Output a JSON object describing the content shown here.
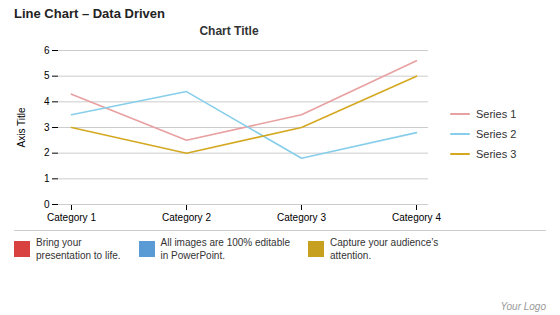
{
  "chart_data": {
    "type": "line",
    "title": "Chart Title",
    "ylabel": "Axis Title",
    "categories": [
      "Category 1",
      "Category 2",
      "Category 3",
      "Category 4"
    ],
    "series": [
      {
        "name": "Series 1",
        "color": "#E8A0A0",
        "values": [
          4.3,
          2.5,
          3.5,
          5.6
        ]
      },
      {
        "name": "Series 2",
        "color": "#87CEEB",
        "values": [
          3.5,
          4.4,
          1.8,
          2.8
        ]
      },
      {
        "name": "Series 3",
        "color": "#D4A820",
        "values": [
          3.0,
          2.0,
          3.0,
          5.0
        ]
      }
    ],
    "ylim": [
      0,
      6
    ],
    "yticks": [
      0,
      1,
      2,
      3,
      4,
      5,
      6
    ],
    "grid": true,
    "legend": "right",
    "annotations": [
      {
        "text": "Line Chart – Data Driven"
      },
      {
        "text": [
          "Bring your",
          "presentation to life."
        ],
        "color": "#D94040"
      },
      {
        "text": [
          "All images are 100% editable",
          "in PowerPoint."
        ],
        "color": "#5B9BD5"
      },
      {
        "text": [
          "Capture your audience’s",
          "attention."
        ],
        "color": "#C8A020"
      },
      {
        "text": "Your Logo"
      }
    ]
  }
}
